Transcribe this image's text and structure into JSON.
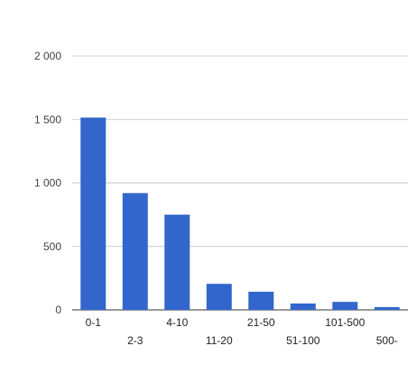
{
  "chart_data": {
    "type": "bar",
    "title": "",
    "xlabel": "",
    "ylabel": "",
    "categories": [
      "0-1",
      "2-3",
      "4-10",
      "11-20",
      "21-50",
      "51-100",
      "101-500",
      "500-"
    ],
    "values": [
      1515,
      920,
      750,
      205,
      143,
      50,
      63,
      22
    ],
    "ylim": [
      0,
      2000
    ],
    "y_ticks": [
      0,
      500,
      1000,
      1500,
      2000
    ],
    "y_tick_labels": [
      "0",
      "500",
      "1 000",
      "1 500",
      "2 000"
    ],
    "grid": true,
    "legend": "none",
    "colors": {
      "bar": "#3366cc",
      "grid": "#cccccc",
      "baseline": "#333333"
    }
  }
}
